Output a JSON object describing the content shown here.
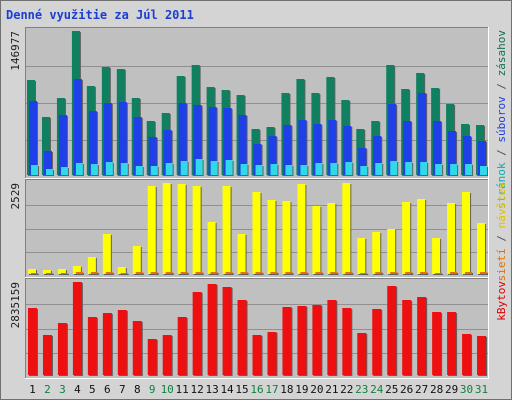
{
  "title": "Denné využitie za Júl 2011",
  "panels": [
    {
      "max_label": "146977",
      "legend": [
        {
          "text": "stránok",
          "color": "#00b0b0"
        },
        {
          "text": " / ",
          "color": "#505050"
        },
        {
          "text": "súborov",
          "color": "#2040e0"
        },
        {
          "text": " / ",
          "color": "#505050"
        },
        {
          "text": "zásahov",
          "color": "#107050"
        }
      ]
    },
    {
      "max_label": "2529",
      "legend": [
        {
          "text": "sietí",
          "color": "#e07000"
        },
        {
          "text": " / ",
          "color": "#505050"
        },
        {
          "text": "návštev",
          "color": "#e0c000"
        }
      ]
    },
    {
      "max_label": "2835159",
      "legend": [
        {
          "text": "kBytov",
          "color": "#e00000"
        }
      ]
    }
  ],
  "colors": {
    "hits": "#108060",
    "files": "#1f3fe8",
    "pages": "#30d8e8",
    "visits": "#ffff00",
    "sites": "#e07000",
    "kbytes": "#ee1010",
    "weekday_label": "#101010",
    "weekend_label": "#108040"
  },
  "chart_data": {
    "type": "bar",
    "categories": [
      "1",
      "2",
      "3",
      "4",
      "5",
      "6",
      "7",
      "8",
      "9",
      "10",
      "11",
      "12",
      "13",
      "14",
      "15",
      "16",
      "17",
      "18",
      "19",
      "20",
      "21",
      "22",
      "23",
      "24",
      "25",
      "26",
      "27",
      "28",
      "29",
      "30",
      "31"
    ],
    "weekend_days": [
      "2",
      "3",
      "9",
      "10",
      "16",
      "17",
      "23",
      "24",
      "30",
      "31"
    ],
    "groups": [
      {
        "max": 146977,
        "series": [
          {
            "name": "zásahov",
            "values": [
              97000,
              59000,
              79000,
              146977,
              91000,
              110000,
              108000,
              79000,
              55000,
              63000,
              101000,
              112000,
              90000,
              87000,
              82000,
              47000,
              49000,
              84000,
              98000,
              84000,
              100000,
              77000,
              47000,
              55000,
              112000,
              88000,
              104000,
              89000,
              72000,
              52000,
              51000
            ]
          },
          {
            "name": "súborov",
            "values": [
              76000,
              24000,
              61000,
              98000,
              65000,
              73000,
              75000,
              59000,
              39000,
              46000,
              73000,
              71000,
              69000,
              68000,
              61000,
              32000,
              40000,
              51000,
              56000,
              52000,
              56000,
              50000,
              28000,
              40000,
              72000,
              55000,
              84000,
              55000,
              45000,
              40000,
              35000
            ]
          },
          {
            "name": "stránok",
            "values": [
              10000,
              6000,
              8000,
              12000,
              11000,
              13000,
              12000,
              9000,
              9000,
              12000,
              14000,
              16000,
              14000,
              15000,
              11000,
              10000,
              11000,
              10000,
              10000,
              12000,
              12000,
              13000,
              9000,
              12000,
              14000,
              13000,
              13000,
              11000,
              11000,
              11000,
              9000
            ]
          }
        ]
      },
      {
        "max": 2529,
        "series": [
          {
            "name": "návštev",
            "values": [
              150,
              120,
              140,
              230,
              480,
              1100,
              190,
              790,
              2450,
              2530,
              2510,
              2450,
              1450,
              2450,
              1100,
              2280,
              2050,
              2040,
              2500,
              1880,
              1980,
              2530,
              1000,
              1180,
              1260,
              2000,
              2080,
              1000,
              1980,
              2280,
              1420
            ]
          },
          {
            "name": "sietí",
            "values": [
              40,
              30,
              40,
              50,
              50,
              60,
              40,
              50,
              60,
              60,
              60,
              60,
              50,
              60,
              50,
              60,
              60,
              60,
              60,
              60,
              60,
              60,
              40,
              50,
              50,
              60,
              60,
              40,
              60,
              60,
              50
            ]
          }
        ]
      },
      {
        "max": 2835159,
        "series": [
          {
            "name": "kBytov",
            "values": [
              2050000,
              1220000,
              1580000,
              2835159,
              1760000,
              1900000,
              1980000,
              1650000,
              1110000,
              1220000,
              1780000,
              2520000,
              2760000,
              2690000,
              2300000,
              1230000,
              1300000,
              2080000,
              2100000,
              2120000,
              2300000,
              2030000,
              1290000,
              2000000,
              2700000,
              2300000,
              2370000,
              1910000,
              1920000,
              1260000,
              1200000
            ]
          }
        ]
      }
    ]
  }
}
